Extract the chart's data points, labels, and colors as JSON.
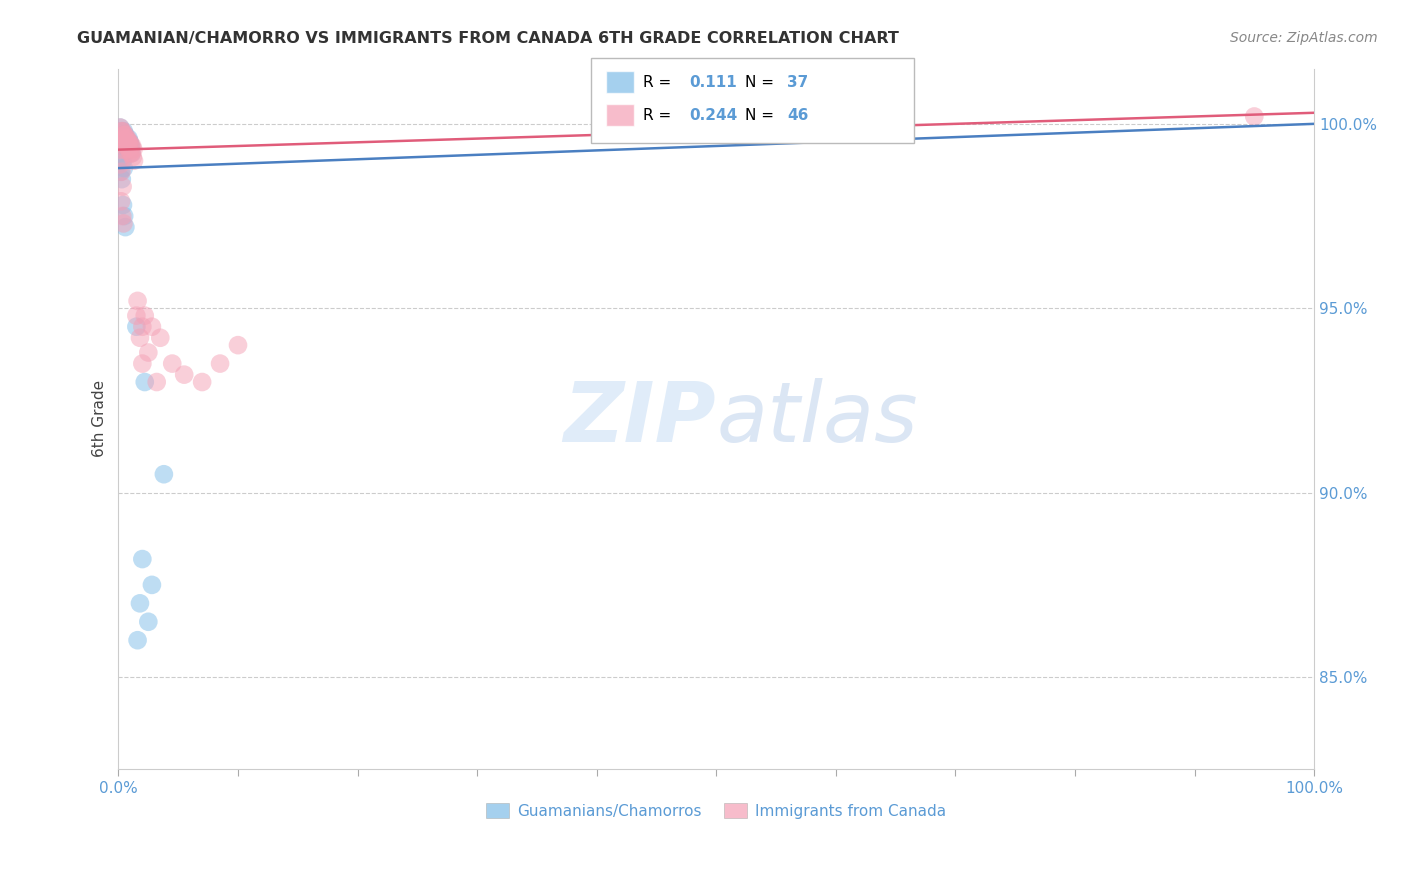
{
  "title": "GUAMANIAN/CHAMORRO VS IMMIGRANTS FROM CANADA 6TH GRADE CORRELATION CHART",
  "source": "Source: ZipAtlas.com",
  "ylabel": "6th Grade",
  "xlim": [
    0.0,
    100.0
  ],
  "ylim": [
    82.5,
    101.5
  ],
  "blue_R": 0.111,
  "blue_N": 37,
  "pink_R": 0.244,
  "pink_N": 46,
  "blue_color": "#7fbde8",
  "pink_color": "#f4a0b5",
  "blue_line_color": "#4a7fc1",
  "pink_line_color": "#e05c7a",
  "legend_label_blue": "Guamanians/Chamorros",
  "legend_label_pink": "Immigrants from Canada",
  "blue_line_x0": 0.0,
  "blue_line_y0": 98.8,
  "blue_line_x1": 100.0,
  "blue_line_y1": 100.0,
  "pink_line_x0": 0.0,
  "pink_line_y0": 99.3,
  "pink_line_x1": 100.0,
  "pink_line_y1": 100.3,
  "blue_x": [
    0.15,
    0.25,
    0.35,
    0.45,
    0.55,
    0.65,
    0.75,
    0.85,
    0.95,
    1.05,
    0.2,
    0.3,
    0.4,
    0.5,
    0.6,
    0.7,
    0.8,
    0.9,
    1.0,
    1.1,
    0.15,
    0.25,
    0.35,
    0.45,
    0.18,
    0.28,
    0.38,
    0.48,
    0.58,
    1.5,
    2.2,
    3.8,
    2.0,
    2.8,
    1.8,
    2.5,
    1.6
  ],
  "blue_y": [
    99.9,
    99.8,
    99.7,
    99.8,
    99.7,
    99.6,
    99.5,
    99.6,
    99.5,
    99.4,
    99.6,
    99.5,
    99.6,
    99.4,
    99.5,
    99.4,
    99.3,
    99.3,
    99.4,
    99.2,
    99.2,
    99.1,
    99.0,
    98.8,
    98.7,
    98.5,
    97.8,
    97.5,
    97.2,
    94.5,
    93.0,
    90.5,
    88.2,
    87.5,
    87.0,
    86.5,
    86.0
  ],
  "pink_x": [
    0.15,
    0.25,
    0.35,
    0.45,
    0.55,
    0.65,
    0.75,
    0.85,
    0.95,
    1.05,
    1.15,
    1.25,
    0.2,
    0.3,
    0.4,
    0.5,
    0.6,
    0.7,
    0.8,
    0.9,
    1.0,
    1.1,
    1.2,
    1.3,
    0.15,
    0.25,
    0.35,
    0.22,
    0.32,
    0.42,
    1.5,
    1.8,
    2.0,
    2.5,
    3.5,
    4.5,
    5.5,
    7.0,
    8.5,
    10.0,
    2.8,
    3.2,
    1.6,
    2.2,
    2.0,
    95.0
  ],
  "pink_y": [
    99.9,
    99.8,
    99.8,
    99.7,
    99.7,
    99.6,
    99.6,
    99.5,
    99.5,
    99.4,
    99.4,
    99.3,
    99.3,
    99.5,
    99.6,
    99.4,
    99.3,
    99.4,
    99.5,
    99.3,
    99.2,
    99.2,
    99.1,
    99.0,
    98.9,
    98.7,
    98.3,
    97.9,
    97.5,
    97.3,
    94.8,
    94.2,
    94.5,
    93.8,
    94.2,
    93.5,
    93.2,
    93.0,
    93.5,
    94.0,
    94.5,
    93.0,
    95.2,
    94.8,
    93.5,
    100.2
  ],
  "watermark_zip": "ZIP",
  "watermark_atlas": "atlas",
  "background_color": "#ffffff",
  "grid_color": "#cccccc",
  "tick_color": "#5b9bd5",
  "yticks": [
    85.0,
    90.0,
    95.0,
    100.0
  ],
  "ytick_labels": [
    "85.0%",
    "90.0%",
    "95.0%",
    "100.0%"
  ]
}
